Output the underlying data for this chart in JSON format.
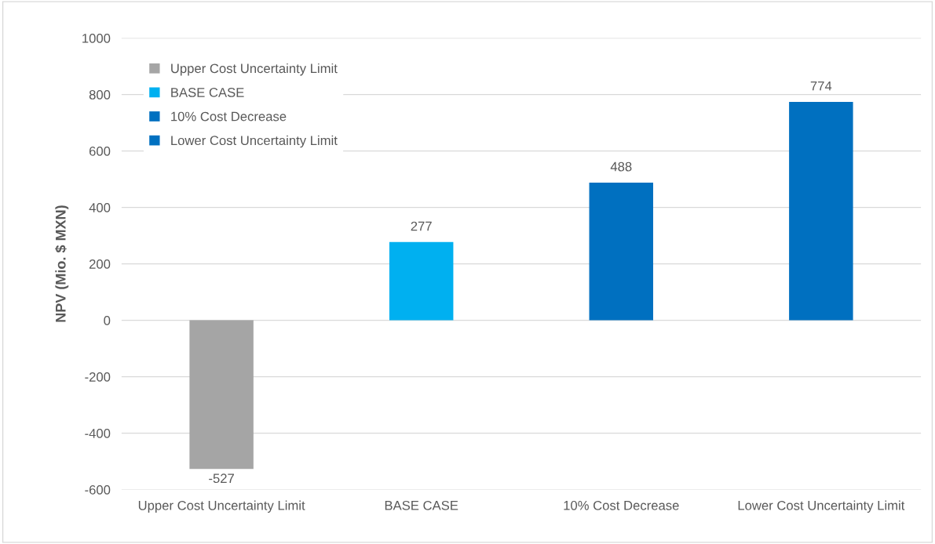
{
  "chart_data": {
    "type": "bar",
    "ylabel": "NPV (Mio. $ MXN)",
    "categories": [
      "Upper Cost Uncertainty Limit",
      "BASE CASE",
      "10% Cost Decrease",
      "Lower Cost Uncertainty Limit"
    ],
    "series": [
      {
        "name": "Upper Cost Uncertainty Limit",
        "color": "#a5a5a5",
        "values": [
          -527,
          null,
          null,
          null
        ]
      },
      {
        "name": "BASE CASE",
        "color": "#00b0f0",
        "values": [
          null,
          277,
          null,
          null
        ]
      },
      {
        "name": "10% Cost Decrease",
        "color": "#0070c0",
        "values": [
          null,
          null,
          488,
          null
        ]
      },
      {
        "name": "Lower Cost Uncertainty Limit",
        "color": "#0070c0",
        "values": [
          null,
          null,
          null,
          774
        ]
      }
    ],
    "ylim": [
      -600,
      1000
    ],
    "yticks": [
      -600,
      -400,
      -200,
      0,
      200,
      400,
      600,
      800,
      1000
    ],
    "grid": "y",
    "legend": "top left",
    "data_labels": true
  }
}
